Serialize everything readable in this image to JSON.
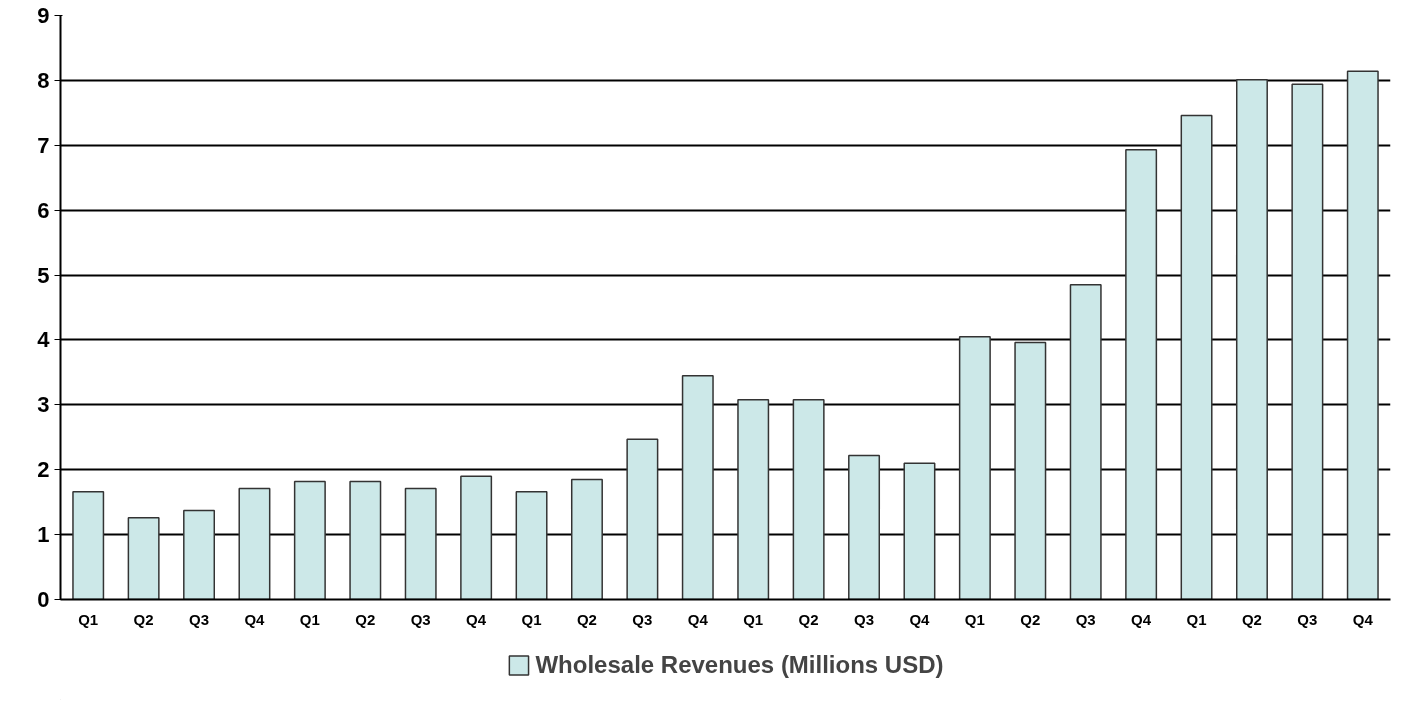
{
  "chart_data": {
    "type": "bar",
    "categories": [
      "Q1",
      "Q2",
      "Q3",
      "Q4",
      "Q1",
      "Q2",
      "Q3",
      "Q4",
      "Q1",
      "Q2",
      "Q3",
      "Q4",
      "Q1",
      "Q2",
      "Q3",
      "Q4",
      "Q1",
      "Q2",
      "Q3",
      "Q4",
      "Q1",
      "Q2",
      "Q3",
      "Q4"
    ],
    "series": [
      {
        "name": "Wholesale Revenues (Millions USD)",
        "color": "#cce8e8",
        "values": [
          1.66,
          1.26,
          1.37,
          1.71,
          1.82,
          1.82,
          1.71,
          1.9,
          1.66,
          1.85,
          2.47,
          3.45,
          3.08,
          3.08,
          2.22,
          2.1,
          4.05,
          3.96,
          4.85,
          6.93,
          7.46,
          8.01,
          7.94,
          8.14
        ]
      }
    ],
    "ylim": [
      0,
      9
    ],
    "yticks": [
      0,
      1,
      2,
      3,
      4,
      5,
      6,
      7,
      8,
      9
    ],
    "grid": "y",
    "legend": "bottom"
  }
}
